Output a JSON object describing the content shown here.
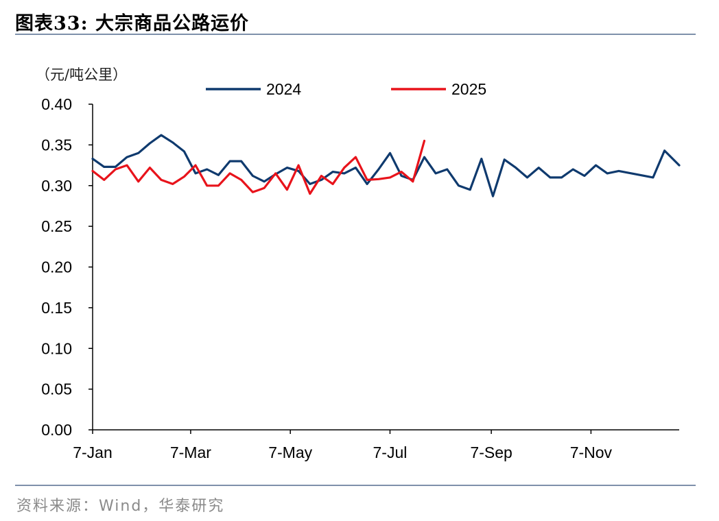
{
  "header": {
    "title": "图表33:  大宗商品公路运价"
  },
  "footer": {
    "source": "资料来源：Wind，华泰研究"
  },
  "chart_data": {
    "type": "line",
    "unit_label": "（元/吨公里）",
    "x_tick_labels": [
      "7-Jan",
      "7-Mar",
      "7-May",
      "7-Jul",
      "7-Sep",
      "7-Nov"
    ],
    "y_tick_labels": [
      "0.00",
      "0.05",
      "0.10",
      "0.15",
      "0.20",
      "0.25",
      "0.30",
      "0.35",
      "0.40"
    ],
    "ylim": [
      0,
      0.4
    ],
    "xlim": [
      "01-07",
      "12-31"
    ],
    "grid": false,
    "legend_position": "top",
    "series": [
      {
        "name": "2024",
        "color": "#0f3a6e",
        "points": [
          [
            "01-07",
            0.333
          ],
          [
            "01-14",
            0.323
          ],
          [
            "01-21",
            0.323
          ],
          [
            "01-28",
            0.335
          ],
          [
            "02-04",
            0.34
          ],
          [
            "02-11",
            0.352
          ],
          [
            "02-18",
            0.362
          ],
          [
            "02-25",
            0.353
          ],
          [
            "03-03",
            0.342
          ],
          [
            "03-10",
            0.315
          ],
          [
            "03-17",
            0.32
          ],
          [
            "03-24",
            0.313
          ],
          [
            "03-31",
            0.33
          ],
          [
            "04-07",
            0.33
          ],
          [
            "04-14",
            0.312
          ],
          [
            "04-21",
            0.305
          ],
          [
            "04-28",
            0.314
          ],
          [
            "05-05",
            0.322
          ],
          [
            "05-12",
            0.318
          ],
          [
            "05-19",
            0.302
          ],
          [
            "05-26",
            0.307
          ],
          [
            "06-02",
            0.317
          ],
          [
            "06-09",
            0.315
          ],
          [
            "06-16",
            0.322
          ],
          [
            "06-23",
            0.302
          ],
          [
            "06-30",
            0.32
          ],
          [
            "07-07",
            0.34
          ],
          [
            "07-14",
            0.312
          ],
          [
            "07-21",
            0.307
          ],
          [
            "07-28",
            0.335
          ],
          [
            "08-04",
            0.315
          ],
          [
            "08-11",
            0.32
          ],
          [
            "08-18",
            0.3
          ],
          [
            "08-25",
            0.295
          ],
          [
            "09-01",
            0.333
          ],
          [
            "09-08",
            0.287
          ],
          [
            "09-15",
            0.332
          ],
          [
            "09-22",
            0.322
          ],
          [
            "09-29",
            0.31
          ],
          [
            "10-06",
            0.322
          ],
          [
            "10-13",
            0.31
          ],
          [
            "10-20",
            0.31
          ],
          [
            "10-27",
            0.32
          ],
          [
            "11-03",
            0.312
          ],
          [
            "11-10",
            0.325
          ],
          [
            "11-17",
            0.315
          ],
          [
            "11-24",
            0.318
          ],
          [
            "12-15",
            0.31
          ],
          [
            "12-22",
            0.343
          ],
          [
            "12-31",
            0.325
          ]
        ]
      },
      {
        "name": "2025",
        "color": "#e8131b",
        "points": [
          [
            "01-07",
            0.318
          ],
          [
            "01-14",
            0.307
          ],
          [
            "01-21",
            0.32
          ],
          [
            "01-28",
            0.325
          ],
          [
            "02-04",
            0.305
          ],
          [
            "02-11",
            0.322
          ],
          [
            "02-18",
            0.307
          ],
          [
            "02-25",
            0.302
          ],
          [
            "03-03",
            0.311
          ],
          [
            "03-10",
            0.325
          ],
          [
            "03-17",
            0.3
          ],
          [
            "03-24",
            0.3
          ],
          [
            "03-31",
            0.315
          ],
          [
            "04-07",
            0.307
          ],
          [
            "04-14",
            0.292
          ],
          [
            "04-21",
            0.297
          ],
          [
            "04-28",
            0.315
          ],
          [
            "05-05",
            0.295
          ],
          [
            "05-12",
            0.325
          ],
          [
            "05-19",
            0.29
          ],
          [
            "05-26",
            0.312
          ],
          [
            "06-02",
            0.302
          ],
          [
            "06-09",
            0.322
          ],
          [
            "06-16",
            0.335
          ],
          [
            "06-23",
            0.307
          ],
          [
            "06-30",
            0.308
          ],
          [
            "07-07",
            0.31
          ],
          [
            "07-14",
            0.317
          ],
          [
            "07-21",
            0.305
          ],
          [
            "07-28",
            0.355
          ]
        ]
      }
    ]
  }
}
